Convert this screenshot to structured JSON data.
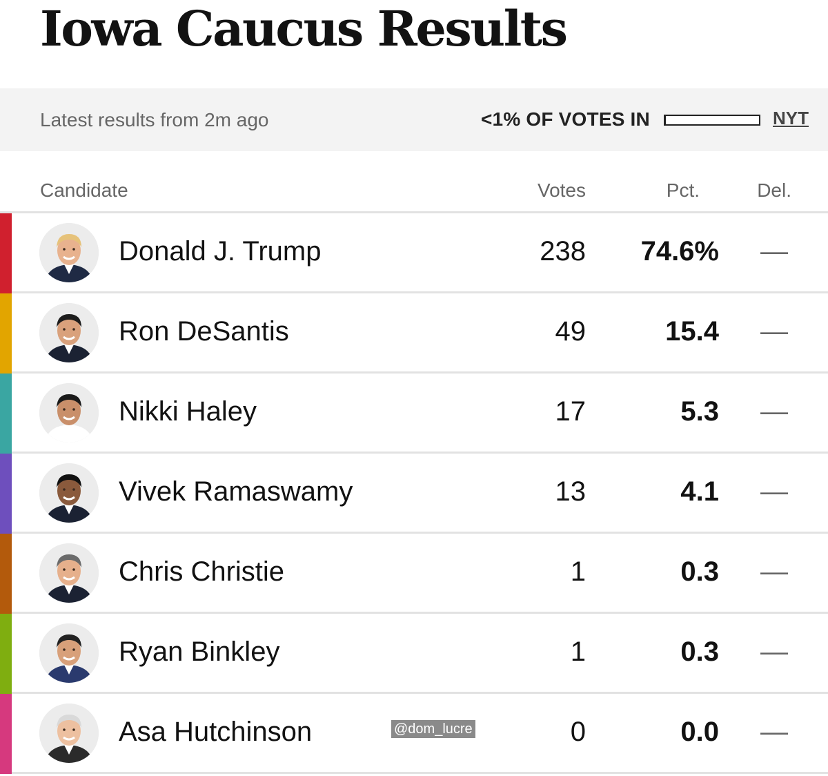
{
  "page": {
    "title": "Iowa Caucus Results"
  },
  "status": {
    "latest": "Latest results from 2m ago",
    "reporting": "<1% OF VOTES IN",
    "reporting_fraction": 0.01,
    "source": "NYT"
  },
  "table": {
    "headers": {
      "candidate": "Candidate",
      "votes": "Votes",
      "pct": "Pct.",
      "del": "Del."
    },
    "rows": [
      {
        "name": "Donald J. Trump",
        "votes": "238",
        "pct": "74.6%",
        "del": "—",
        "color": "#d0202e",
        "avatar_icon": "candidate-photo-icon"
      },
      {
        "name": "Ron DeSantis",
        "votes": "49",
        "pct": "15.4",
        "del": "—",
        "color": "#e2a500",
        "avatar_icon": "candidate-photo-icon"
      },
      {
        "name": "Nikki Haley",
        "votes": "17",
        "pct": "5.3",
        "del": "—",
        "color": "#3aa6a2",
        "avatar_icon": "candidate-photo-icon"
      },
      {
        "name": "Vivek Ramaswamy",
        "votes": "13",
        "pct": "4.1",
        "del": "—",
        "color": "#6e4fbd",
        "avatar_icon": "candidate-photo-icon"
      },
      {
        "name": "Chris Christie",
        "votes": "1",
        "pct": "0.3",
        "del": "—",
        "color": "#b35a0c",
        "avatar_icon": "candidate-photo-icon"
      },
      {
        "name": "Ryan Binkley",
        "votes": "1",
        "pct": "0.3",
        "del": "—",
        "color": "#7fae10",
        "avatar_icon": "candidate-photo-icon"
      },
      {
        "name": "Asa Hutchinson",
        "votes": "0",
        "pct": "0.0",
        "del": "—",
        "color": "#d6397e",
        "avatar_icon": "candidate-photo-icon"
      }
    ]
  },
  "watermark": "@dom_lucre"
}
